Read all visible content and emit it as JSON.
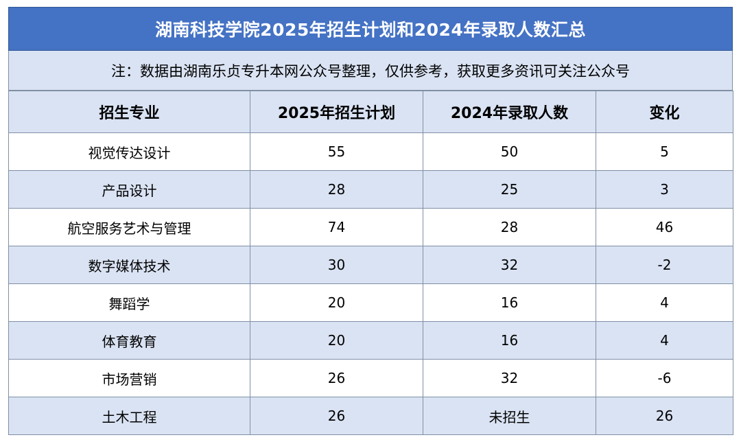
{
  "title": "湖南科技学院2025年招生计划和2024年录取人数汇总",
  "note": "注：数据由湖南乐贞专升本网公众号整理，仅供参考，获取更多资讯可关注公众号",
  "headers": [
    "招生专业",
    "2025年招生计划",
    "2024年录取人数",
    "变化"
  ],
  "rows": [
    [
      "视觉传达设计",
      "55",
      "50",
      "5"
    ],
    [
      "产品设计",
      "28",
      "25",
      "3"
    ],
    [
      "航空服务艺术与管理",
      "74",
      "28",
      "46"
    ],
    [
      "数字媒体技术",
      "30",
      "32",
      "-2"
    ],
    [
      "舞蹈学",
      "20",
      "16",
      "4"
    ],
    [
      "体育教育",
      "20",
      "16",
      "4"
    ],
    [
      "市场营销",
      "26",
      "32",
      "-6"
    ],
    [
      "土木工程",
      "26",
      "未招生",
      "26"
    ]
  ],
  "colors": {
    "header_bg": "#4472c4",
    "stripe": "#dae3f3"
  }
}
